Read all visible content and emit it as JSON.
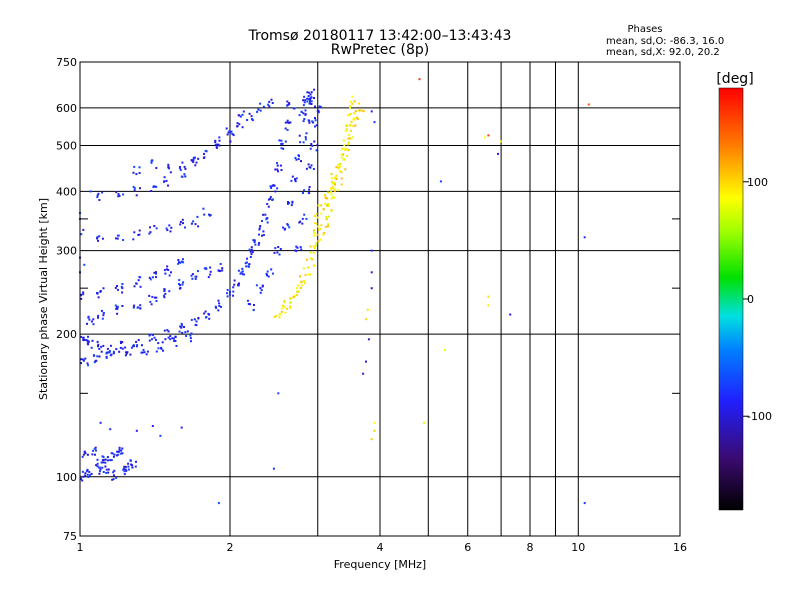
{
  "chart_data": {
    "type": "scatter",
    "title": "Tromsø 20180117 13:42:00–13:43:43",
    "subtitle": "RwPretec (8p)",
    "xlabel": "Frequency [MHz]",
    "ylabel": "Stationary phase Virtual Height [km]",
    "x_scale": "log",
    "y_scale": "log",
    "xlim": [
      1,
      16
    ],
    "ylim": [
      75,
      750
    ],
    "x_ticks": [
      1,
      2,
      4,
      6,
      8,
      10,
      16
    ],
    "x_tick_labels": [
      "1",
      "2",
      "4",
      "6",
      "8",
      "10",
      "16"
    ],
    "x_minor_gridlines": [
      3,
      5,
      7,
      9
    ],
    "y_ticks": [
      75,
      100,
      200,
      300,
      400,
      500,
      600,
      750
    ],
    "y_tick_labels": [
      "75",
      "100",
      "200",
      "300",
      "400",
      "500",
      "600",
      "750"
    ],
    "y_minor_gridlines": [
      150,
      250,
      350
    ],
    "grid": true,
    "stats": {
      "heading": "Phases",
      "line_o": "mean, sd,O: -86.3, 16.0",
      "line_x": "mean, sd,X:  92.0, 20.2"
    },
    "colorbar": {
      "label": "[deg]",
      "range": [
        -180,
        180
      ],
      "ticks": [
        -100,
        0,
        100
      ],
      "tick_labels": [
        "-100",
        "0",
        "100"
      ]
    },
    "o_trace_phase_deg": -86.3,
    "x_trace_phase_deg": 92.0,
    "series": [
      {
        "key": "o_low_trace",
        "points": [
          [
            1.0,
            100
          ],
          [
            1.02,
            101
          ],
          [
            1.05,
            102
          ],
          [
            1.08,
            104
          ],
          [
            1.1,
            106
          ],
          [
            1.12,
            108
          ],
          [
            1.15,
            110
          ],
          [
            1.18,
            112
          ],
          [
            1.2,
            113
          ],
          [
            1.22,
            103
          ],
          [
            1.25,
            105
          ],
          [
            1.28,
            107
          ],
          [
            1.03,
            112
          ],
          [
            1.07,
            114
          ],
          [
            1.13,
            103
          ],
          [
            1.17,
            101
          ]
        ]
      },
      {
        "key": "o_f1_trace",
        "points": [
          [
            1.0,
            200
          ],
          [
            1.02,
            195
          ],
          [
            1.05,
            190
          ],
          [
            1.1,
            188
          ],
          [
            1.15,
            185
          ],
          [
            1.2,
            188
          ],
          [
            1.3,
            192
          ],
          [
            1.4,
            196
          ],
          [
            1.5,
            200
          ],
          [
            1.6,
            205
          ],
          [
            1.7,
            212
          ],
          [
            1.8,
            220
          ],
          [
            1.9,
            230
          ],
          [
            2.0,
            242
          ],
          [
            2.05,
            255
          ],
          [
            2.1,
            268
          ],
          [
            2.15,
            282
          ],
          [
            2.2,
            295
          ],
          [
            2.25,
            310
          ],
          [
            2.3,
            330
          ],
          [
            2.35,
            350
          ],
          [
            2.4,
            380
          ],
          [
            2.45,
            410
          ],
          [
            2.5,
            450
          ],
          [
            2.55,
            500
          ],
          [
            2.6,
            550
          ],
          [
            2.65,
            610
          ],
          [
            1.05,
            215
          ],
          [
            1.1,
            220
          ],
          [
            1.2,
            225
          ],
          [
            1.3,
            230
          ],
          [
            1.4,
            235
          ],
          [
            1.5,
            245
          ],
          [
            1.6,
            255
          ],
          [
            1.7,
            265
          ],
          [
            1.8,
            270
          ],
          [
            1.9,
            275
          ],
          [
            1.0,
            240
          ],
          [
            1.1,
            245
          ],
          [
            1.2,
            250
          ],
          [
            1.3,
            258
          ],
          [
            1.4,
            265
          ],
          [
            1.5,
            272
          ],
          [
            1.6,
            282
          ],
          [
            1.02,
            175
          ],
          [
            1.08,
            178
          ],
          [
            1.15,
            180
          ],
          [
            1.25,
            183
          ],
          [
            1.35,
            185
          ],
          [
            1.45,
            188
          ],
          [
            1.55,
            193
          ],
          [
            1.65,
            198
          ]
        ]
      },
      {
        "key": "o_f2_trace",
        "points": [
          [
            2.2,
            230
          ],
          [
            2.3,
            250
          ],
          [
            2.4,
            270
          ],
          [
            2.5,
            300
          ],
          [
            2.6,
            340
          ],
          [
            2.65,
            380
          ],
          [
            2.7,
            420
          ],
          [
            2.75,
            470
          ],
          [
            2.8,
            520
          ],
          [
            2.85,
            570
          ],
          [
            2.88,
            620
          ],
          [
            2.9,
            650
          ],
          [
            2.75,
            300
          ],
          [
            2.8,
            350
          ],
          [
            2.85,
            400
          ],
          [
            2.9,
            450
          ],
          [
            2.95,
            500
          ],
          [
            2.95,
            560
          ],
          [
            3.0,
            600
          ],
          [
            2.85,
            620
          ],
          [
            2.8,
            580
          ],
          [
            2.9,
            620
          ]
        ]
      },
      {
        "key": "o_upper_band",
        "points": [
          [
            1.0,
            330
          ],
          [
            1.1,
            320
          ],
          [
            1.2,
            322
          ],
          [
            1.3,
            325
          ],
          [
            1.4,
            330
          ],
          [
            1.5,
            335
          ],
          [
            1.6,
            340
          ],
          [
            1.7,
            345
          ],
          [
            1.8,
            360
          ],
          [
            1.1,
            390
          ],
          [
            1.2,
            395
          ],
          [
            1.3,
            400
          ],
          [
            1.4,
            410
          ],
          [
            1.5,
            420
          ],
          [
            1.6,
            440
          ],
          [
            1.7,
            460
          ],
          [
            1.8,
            480
          ],
          [
            1.9,
            500
          ],
          [
            2.0,
            520
          ],
          [
            2.1,
            545
          ],
          [
            2.2,
            570
          ],
          [
            2.3,
            600
          ],
          [
            2.4,
            615
          ],
          [
            1.5,
            445
          ],
          [
            1.6,
            455
          ],
          [
            1.7,
            470
          ],
          [
            1.9,
            510
          ],
          [
            2.0,
            540
          ],
          [
            2.1,
            580
          ],
          [
            1.3,
            440
          ],
          [
            1.4,
            455
          ]
        ]
      },
      {
        "key": "o_scattered",
        "points": [
          [
            1.3,
            125
          ],
          [
            1.4,
            128
          ],
          [
            1.45,
            122
          ],
          [
            1.6,
            127
          ],
          [
            1.1,
            130
          ],
          [
            1.15,
            126
          ],
          [
            1.0,
            290
          ],
          [
            1.02,
            280
          ],
          [
            1.0,
            270
          ],
          [
            1.0,
            350
          ],
          [
            1.0,
            360
          ],
          [
            1.05,
            400
          ],
          [
            3.85,
            300
          ],
          [
            3.85,
            270
          ],
          [
            3.85,
            250
          ],
          [
            3.75,
            175
          ],
          [
            3.7,
            165
          ],
          [
            3.8,
            195
          ],
          [
            5.3,
            420
          ],
          [
            6.9,
            480
          ],
          [
            7.3,
            220
          ],
          [
            1.9,
            88
          ],
          [
            2.45,
            104
          ],
          [
            2.5,
            150
          ],
          [
            10.3,
            88
          ],
          [
            10.3,
            320
          ],
          [
            3.9,
            560
          ],
          [
            3.85,
            590
          ]
        ]
      },
      {
        "key": "x_trace",
        "points": [
          [
            2.5,
            220
          ],
          [
            2.55,
            225
          ],
          [
            2.6,
            230
          ],
          [
            2.65,
            235
          ],
          [
            2.7,
            240
          ],
          [
            2.75,
            250
          ],
          [
            2.8,
            260
          ],
          [
            2.85,
            270
          ],
          [
            2.9,
            285
          ],
          [
            2.95,
            300
          ],
          [
            3.0,
            315
          ],
          [
            3.05,
            330
          ],
          [
            3.1,
            345
          ],
          [
            3.15,
            360
          ],
          [
            3.2,
            380
          ],
          [
            3.25,
            400
          ],
          [
            3.3,
            420
          ],
          [
            3.35,
            445
          ],
          [
            3.4,
            470
          ],
          [
            3.45,
            500
          ],
          [
            3.5,
            530
          ],
          [
            3.55,
            560
          ],
          [
            3.6,
            580
          ],
          [
            3.65,
            600
          ],
          [
            3.1,
            380
          ],
          [
            3.15,
            395
          ],
          [
            3.2,
            410
          ],
          [
            3.25,
            425
          ],
          [
            3.0,
            350
          ],
          [
            3.05,
            365
          ],
          [
            2.95,
            330
          ],
          [
            3.3,
            460
          ],
          [
            3.4,
            500
          ],
          [
            3.45,
            540
          ],
          [
            3.5,
            590
          ],
          [
            3.55,
            620
          ]
        ]
      },
      {
        "key": "x_scattered",
        "points": [
          [
            3.9,
            130
          ],
          [
            3.9,
            125
          ],
          [
            3.85,
            120
          ],
          [
            4.9,
            130
          ],
          [
            5.4,
            185
          ],
          [
            6.6,
            240
          ],
          [
            6.6,
            230
          ],
          [
            7.0,
            510
          ],
          [
            6.5,
            520
          ],
          [
            3.75,
            215
          ],
          [
            3.78,
            225
          ]
        ]
      },
      {
        "key": "x_misc",
        "points": [
          [
            4.8,
            690
          ],
          [
            6.6,
            525
          ],
          [
            10.5,
            610
          ]
        ]
      }
    ]
  }
}
